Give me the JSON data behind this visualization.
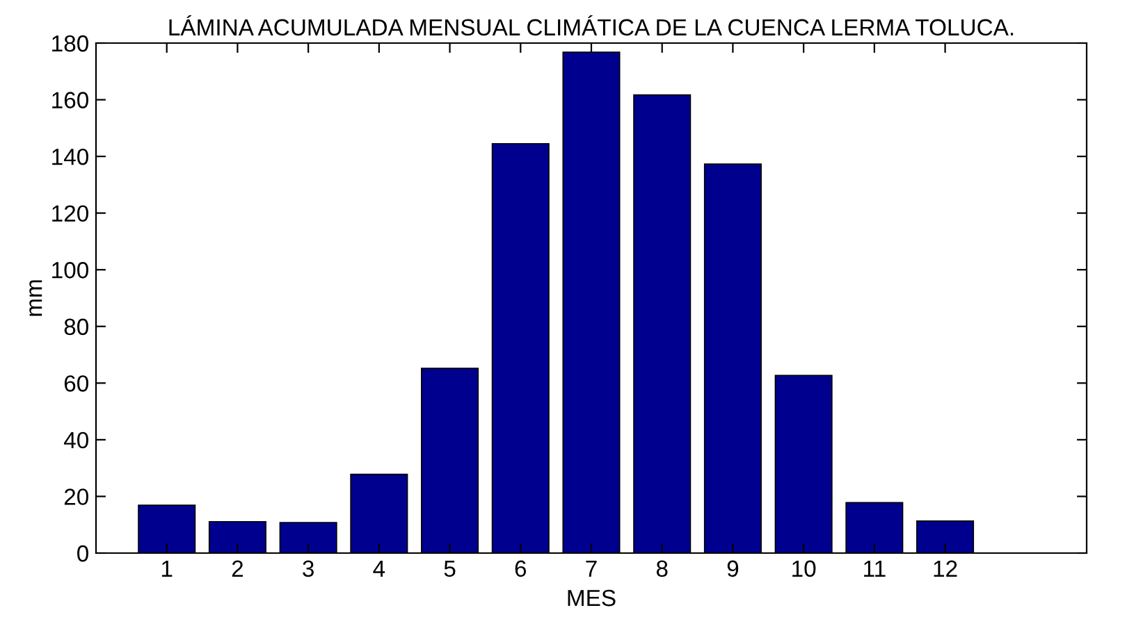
{
  "chart_data": {
    "type": "bar",
    "title": "LÁMINA ACUMULADA MENSUAL CLIMÁTICA DE LA CUENCA LERMA TOLUCA.",
    "xlabel": "MES",
    "ylabel": "mm",
    "x": [
      1,
      2,
      3,
      4,
      5,
      6,
      7,
      8,
      9,
      10,
      11,
      12
    ],
    "values": [
      16.9,
      11.1,
      10.8,
      27.8,
      65.2,
      144.5,
      176.8,
      161.7,
      137.3,
      62.7,
      17.8,
      11.3
    ],
    "color": "#00008f",
    "xlim": [
      0,
      14
    ],
    "xticks": [
      1,
      2,
      3,
      4,
      5,
      6,
      7,
      8,
      9,
      10,
      11,
      12
    ],
    "ylim": [
      0,
      180
    ],
    "yticks": [
      0,
      20,
      40,
      60,
      80,
      100,
      120,
      140,
      160,
      180
    ],
    "grid": false,
    "legend": false
  }
}
